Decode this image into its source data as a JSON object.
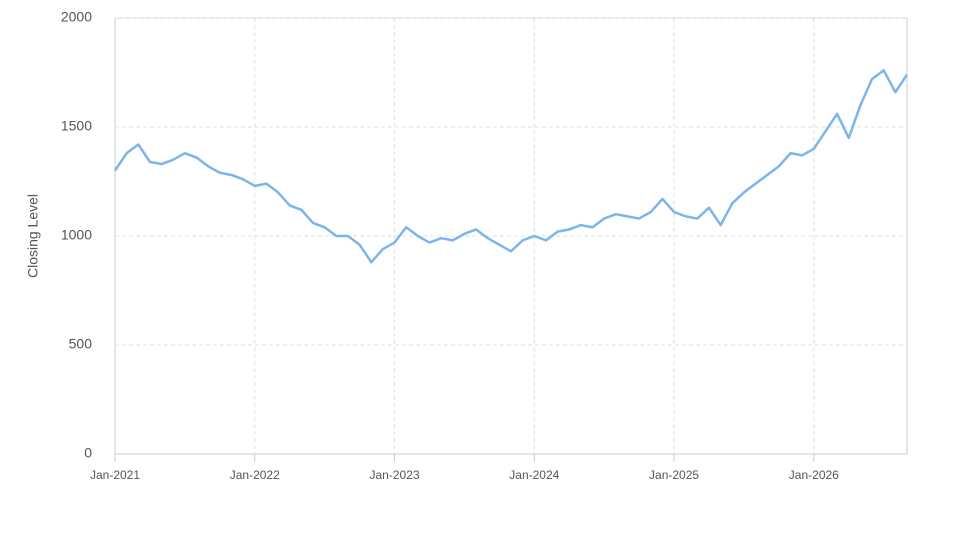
{
  "chart_data": {
    "type": "line",
    "y_label": "Closing Level",
    "x": [
      "2021-01",
      "2021-02",
      "2021-03",
      "2021-04",
      "2021-05",
      "2021-06",
      "2021-07",
      "2021-08",
      "2021-09",
      "2021-10",
      "2021-11",
      "2021-12",
      "2022-01",
      "2022-02",
      "2022-03",
      "2022-04",
      "2022-05",
      "2022-06",
      "2022-07",
      "2022-08",
      "2022-09",
      "2022-10",
      "2022-11",
      "2022-12",
      "2023-01",
      "2023-02",
      "2023-03",
      "2023-04",
      "2023-05",
      "2023-06",
      "2023-07",
      "2023-08",
      "2023-09",
      "2023-10",
      "2023-11",
      "2023-12",
      "2024-01",
      "2024-02",
      "2024-03",
      "2024-04",
      "2024-05",
      "2024-06",
      "2024-07",
      "2024-08",
      "2024-09",
      "2024-10",
      "2024-11",
      "2024-12",
      "2025-01",
      "2025-02",
      "2025-03",
      "2025-04",
      "2025-05",
      "2025-06",
      "2025-07",
      "2025-08",
      "2025-09",
      "2025-10",
      "2025-11",
      "2025-12",
      "2026-01",
      "2026-02",
      "2026-03",
      "2026-04",
      "2026-05",
      "2026-06",
      "2026-07",
      "2026-08",
      "2026-09"
    ],
    "series": [
      {
        "color": "#7cb5ec",
        "values": [
          1300,
          1380,
          1420,
          1340,
          1330,
          1350,
          1380,
          1360,
          1320,
          1290,
          1280,
          1260,
          1230,
          1240,
          1200,
          1140,
          1120,
          1060,
          1040,
          1000,
          1000,
          960,
          880,
          940,
          970,
          1040,
          1000,
          970,
          990,
          980,
          1010,
          1030,
          990,
          960,
          930,
          980,
          1000,
          980,
          1020,
          1030,
          1050,
          1040,
          1080,
          1100,
          1090,
          1080,
          1110,
          1170,
          1110,
          1090,
          1080,
          1130,
          1050,
          1150,
          1200,
          1240,
          1280,
          1320,
          1380,
          1370,
          1400,
          1480,
          1560,
          1450,
          1600,
          1720,
          1760,
          1660,
          1740
        ]
      }
    ],
    "xlim": [
      "2021-01",
      "2026-09"
    ],
    "xticks": [
      {
        "value": "2021-01",
        "label": "Jan-2021"
      },
      {
        "value": "2022-01",
        "label": "Jan-2022"
      },
      {
        "value": "2023-01",
        "label": "Jan-2023"
      },
      {
        "value": "2024-01",
        "label": "Jan-2024"
      },
      {
        "value": "2025-01",
        "label": "Jan-2025"
      },
      {
        "value": "2026-01",
        "label": "Jan-2026"
      }
    ],
    "ylim": [
      0,
      2000
    ],
    "yticks": [
      0,
      500,
      1000,
      1500,
      2000
    ],
    "grid": true
  }
}
